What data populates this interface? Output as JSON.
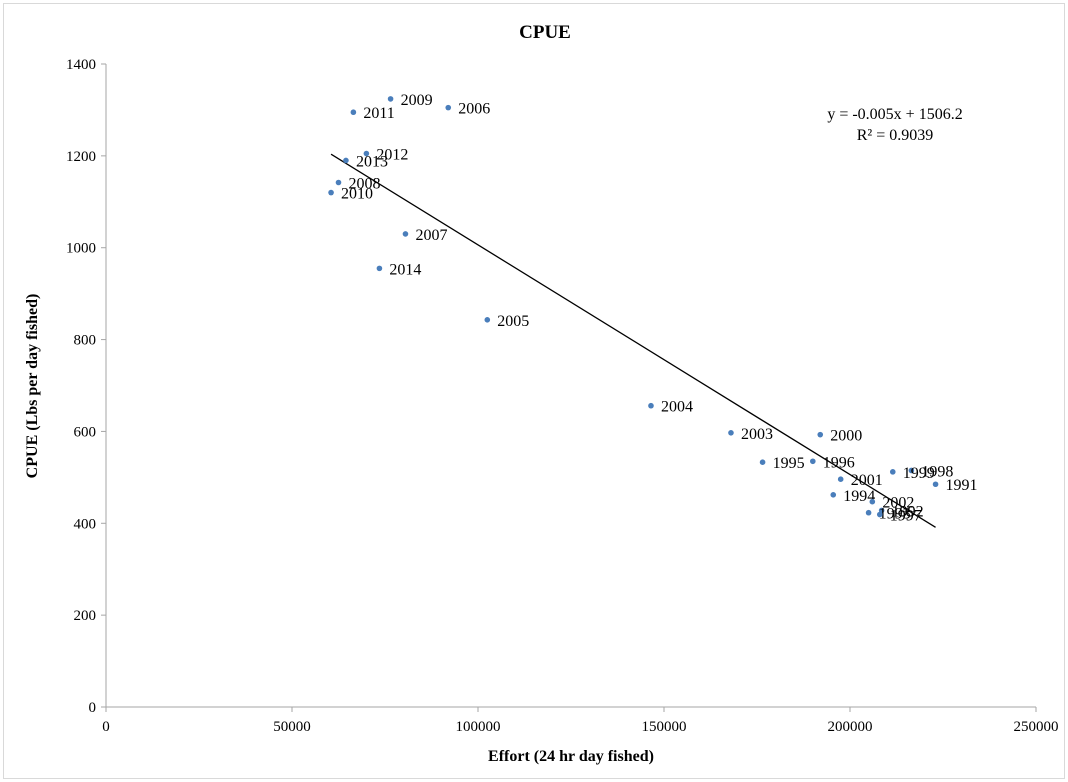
{
  "chart_data": {
    "type": "scatter",
    "title": "CPUE",
    "xlabel": "Effort (24 hr day fished)",
    "ylabel": "CPUE (Lbs per day fished)",
    "xlim": [
      0,
      250000
    ],
    "ylim": [
      0,
      1400
    ],
    "xticks": [
      0,
      50000,
      100000,
      150000,
      200000,
      250000
    ],
    "yticks": [
      0,
      200,
      400,
      600,
      800,
      1000,
      1200,
      1400
    ],
    "xtick_labels": [
      "0",
      "50000",
      "100000",
      "150000",
      "200000",
      "250000"
    ],
    "ytick_labels": [
      "0",
      "200",
      "400",
      "600",
      "800",
      "1000",
      "1200",
      "1400"
    ],
    "grid": false,
    "marker_color": "#4a7ebb",
    "trendline": {
      "slope": -0.005,
      "intercept": 1506.2,
      "x_range": [
        60500,
        223000
      ],
      "equation": "y = -0.005x + 1506.2",
      "r_squared": "R² = 0.9039",
      "color": "#000000"
    },
    "points": [
      {
        "label": "1991",
        "x": 223000,
        "y": 485
      },
      {
        "label": "1992",
        "x": 208500,
        "y": 428
      },
      {
        "label": "1993",
        "x": 205000,
        "y": 423
      },
      {
        "label": "1994",
        "x": 195500,
        "y": 462
      },
      {
        "label": "1995",
        "x": 176500,
        "y": 533
      },
      {
        "label": "1996",
        "x": 190000,
        "y": 535
      },
      {
        "label": "1997",
        "x": 208000,
        "y": 419
      },
      {
        "label": "1998",
        "x": 216500,
        "y": 515
      },
      {
        "label": "1999",
        "x": 211500,
        "y": 512
      },
      {
        "label": "2000",
        "x": 192000,
        "y": 593
      },
      {
        "label": "2001",
        "x": 197500,
        "y": 496
      },
      {
        "label": "2002",
        "x": 206000,
        "y": 447
      },
      {
        "label": "2003",
        "x": 168000,
        "y": 597
      },
      {
        "label": "2004",
        "x": 146500,
        "y": 656
      },
      {
        "label": "2005",
        "x": 102500,
        "y": 843
      },
      {
        "label": "2006",
        "x": 92000,
        "y": 1305
      },
      {
        "label": "2007",
        "x": 80500,
        "y": 1030
      },
      {
        "label": "2008",
        "x": 62500,
        "y": 1142
      },
      {
        "label": "2009",
        "x": 76500,
        "y": 1324
      },
      {
        "label": "2010",
        "x": 60500,
        "y": 1120
      },
      {
        "label": "2011",
        "x": 66500,
        "y": 1295
      },
      {
        "label": "2012",
        "x": 70000,
        "y": 1205
      },
      {
        "label": "2013",
        "x": 64500,
        "y": 1190
      },
      {
        "label": "2014",
        "x": 73500,
        "y": 955
      }
    ]
  }
}
